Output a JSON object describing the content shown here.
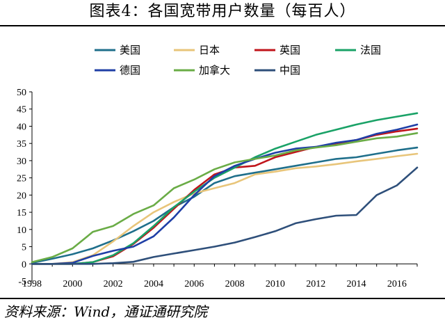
{
  "title": "图表4：各国宽带用户数量（每百人）",
  "source": "资料来源：Wind，通证通研究院",
  "chart_data": {
    "type": "line",
    "ylim": [
      -5,
      50
    ],
    "xlim": [
      1998,
      2017
    ],
    "yticks": [
      -5,
      0,
      5,
      10,
      15,
      20,
      25,
      30,
      35,
      40,
      45,
      50
    ],
    "xticks": [
      1998,
      2000,
      2002,
      2004,
      2006,
      2008,
      2010,
      2012,
      2014,
      2016
    ],
    "legend_position": "top",
    "series": [
      {
        "name": "美国",
        "color": "#1f6f8b",
        "x": [
          1998,
          1999,
          2000,
          2001,
          2002,
          2003,
          2004,
          2005,
          2006,
          2007,
          2008,
          2009,
          2010,
          2011,
          2012,
          2013,
          2014,
          2015,
          2016,
          2017
        ],
        "y": [
          0.3,
          1.5,
          2.8,
          4.5,
          6.8,
          9.5,
          12.5,
          16.5,
          19.5,
          23.5,
          25.5,
          26.5,
          27.5,
          28.5,
          29.5,
          30.5,
          31,
          32,
          33,
          33.8
        ]
      },
      {
        "name": "日本",
        "color": "#e8c57a",
        "x": [
          1998,
          1999,
          2000,
          2001,
          2002,
          2003,
          2004,
          2005,
          2006,
          2007,
          2008,
          2009,
          2010,
          2011,
          2012,
          2013,
          2014,
          2015,
          2016,
          2017
        ],
        "y": [
          0,
          0,
          0.5,
          2.5,
          6.5,
          11,
          15,
          18,
          20.5,
          22,
          23.5,
          26,
          26.8,
          27.8,
          28.3,
          29,
          29.8,
          30.5,
          31.3,
          32
        ]
      },
      {
        "name": "英国",
        "color": "#c0141b",
        "x": [
          1998,
          1999,
          2000,
          2001,
          2002,
          2003,
          2004,
          2005,
          2006,
          2007,
          2008,
          2009,
          2010,
          2011,
          2012,
          2013,
          2014,
          2015,
          2016,
          2017
        ],
        "y": [
          0,
          0,
          0,
          0.5,
          2.2,
          5.8,
          10.5,
          16,
          21.5,
          26,
          28,
          28.5,
          31,
          32.5,
          34,
          35,
          36,
          37.5,
          38.5,
          39.3
        ]
      },
      {
        "name": "法国",
        "color": "#1aa267",
        "x": [
          1998,
          1999,
          2000,
          2001,
          2002,
          2003,
          2004,
          2005,
          2006,
          2007,
          2008,
          2009,
          2010,
          2011,
          2012,
          2013,
          2014,
          2015,
          2016,
          2017
        ],
        "y": [
          0,
          0,
          0,
          0.5,
          2.5,
          6,
          11,
          16.5,
          21,
          25,
          28,
          31,
          33.5,
          35.5,
          37.5,
          39,
          40.5,
          41.8,
          42.8,
          43.8
        ]
      },
      {
        "name": "德国",
        "color": "#1f3fa6",
        "x": [
          1998,
          1999,
          2000,
          2001,
          2002,
          2003,
          2004,
          2005,
          2006,
          2007,
          2008,
          2009,
          2010,
          2011,
          2012,
          2013,
          2014,
          2015,
          2016,
          2017
        ],
        "y": [
          0,
          0,
          0.3,
          2.3,
          3.8,
          5,
          8,
          13.5,
          20,
          25.5,
          28.5,
          30.5,
          32.3,
          33.5,
          34,
          35.2,
          36,
          37.8,
          39,
          40.5
        ]
      },
      {
        "name": "加拿大",
        "color": "#6aac46",
        "x": [
          1998,
          1999,
          2000,
          2001,
          2002,
          2003,
          2004,
          2005,
          2006,
          2007,
          2008,
          2009,
          2010,
          2011,
          2012,
          2013,
          2014,
          2015,
          2016,
          2017
        ],
        "y": [
          0.5,
          2,
          4.5,
          9.3,
          11,
          14.5,
          17,
          22,
          24.5,
          27.5,
          29.5,
          30.5,
          31.5,
          33,
          33.8,
          34.5,
          35.5,
          36.5,
          37,
          38
        ]
      },
      {
        "name": "中国",
        "color": "#2e4f7a",
        "x": [
          1998,
          1999,
          2000,
          2001,
          2002,
          2003,
          2004,
          2005,
          2006,
          2007,
          2008,
          2009,
          2010,
          2011,
          2012,
          2013,
          2014,
          2015,
          2016,
          2017
        ],
        "y": [
          0,
          0,
          0,
          0,
          0.2,
          0.6,
          2,
          3,
          4,
          5,
          6.2,
          7.8,
          9.5,
          11.8,
          13,
          14,
          14.2,
          20,
          22.8,
          28
        ]
      }
    ]
  }
}
